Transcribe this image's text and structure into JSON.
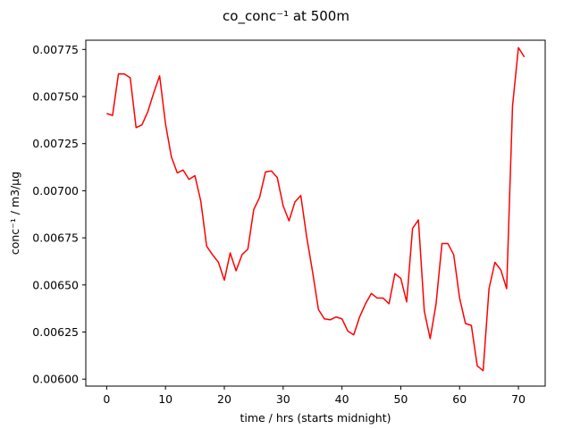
{
  "chart_data": {
    "type": "line",
    "title": "co_conc⁻¹ at 500m",
    "xlabel": "time / hrs (starts midnight)",
    "ylabel": "conc⁻¹ / m3/µg",
    "xlim": [
      -3.55,
      74.55
    ],
    "ylim": [
      0.005963,
      0.007799
    ],
    "x_ticks": [
      0,
      10,
      20,
      30,
      40,
      50,
      60,
      70
    ],
    "x_tick_labels": [
      "0",
      "10",
      "20",
      "30",
      "40",
      "50",
      "60",
      "70"
    ],
    "y_ticks": [
      0.006,
      0.00625,
      0.0065,
      0.00675,
      0.007,
      0.00725,
      0.0075,
      0.00775
    ],
    "y_tick_labels": [
      "0.00600",
      "0.00625",
      "0.00650",
      "0.00675",
      "0.00700",
      "0.00725",
      "0.00750",
      "0.00775"
    ],
    "grid": false,
    "legend": "none",
    "series": [
      {
        "color": "#ff0000",
        "x": [
          0,
          1,
          2,
          3,
          4,
          5,
          6,
          7,
          8,
          9,
          10,
          11,
          12,
          13,
          14,
          15,
          16,
          17,
          18,
          19,
          20,
          21,
          22,
          23,
          24,
          25,
          26,
          27,
          28,
          29,
          30,
          31,
          32,
          33,
          34,
          35,
          36,
          37,
          38,
          39,
          40,
          41,
          42,
          43,
          44,
          45,
          46,
          47,
          48,
          49,
          50,
          51,
          52,
          53,
          54,
          55,
          56,
          57,
          58,
          59,
          60,
          61,
          62,
          63,
          64,
          65,
          66,
          67,
          68,
          69,
          70,
          71
        ],
        "y": [
          0.00741,
          0.0074,
          0.00762,
          0.00762,
          0.0076,
          0.007335,
          0.00735,
          0.00742,
          0.00752,
          0.00761,
          0.007355,
          0.00718,
          0.007095,
          0.00711,
          0.00706,
          0.00708,
          0.006945,
          0.006705,
          0.00666,
          0.00662,
          0.006525,
          0.00667,
          0.006575,
          0.00666,
          0.00669,
          0.0069,
          0.006965,
          0.0071,
          0.007105,
          0.00707,
          0.00692,
          0.00684,
          0.00694,
          0.006975,
          0.006755,
          0.00657,
          0.00637,
          0.00632,
          0.006315,
          0.00633,
          0.00632,
          0.006255,
          0.006235,
          0.00633,
          0.0064,
          0.006455,
          0.00643,
          0.00643,
          0.0064,
          0.00656,
          0.006535,
          0.00641,
          0.0068,
          0.006845,
          0.00636,
          0.006215,
          0.0064,
          0.00672,
          0.00672,
          0.00666,
          0.00643,
          0.006295,
          0.006285,
          0.00607,
          0.006045,
          0.00648,
          0.00662,
          0.00658,
          0.00648,
          0.00745,
          0.00776,
          0.00771
        ]
      }
    ]
  }
}
